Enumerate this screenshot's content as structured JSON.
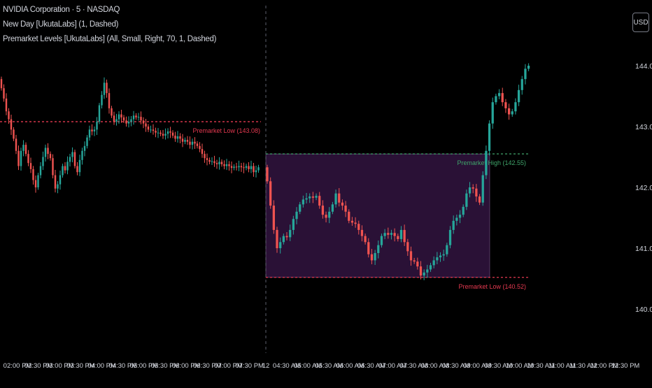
{
  "legend": {
    "symbol": "NVIDIA Corporation · 5 · NASDAQ",
    "indicator1": "New Day [UkutaLabs] (1, Dashed)",
    "indicator2": "Premarket Levels [UkutaLabs] (All, Small, Right, 70, 1, Dashed)"
  },
  "currency_button": "USD",
  "colors": {
    "background": "#000000",
    "up": "#26a69a",
    "down": "#ef5350",
    "premarket_fill": "#2a1136",
    "premarket_border": "#7a5a8a",
    "low_line": "#e53950",
    "high_line": "#3fa46a",
    "axis_text": "#d1d4dc",
    "new_day_line": "#5d606b"
  },
  "chart_data": {
    "type": "candlestick",
    "title": "NVIDIA Corporation · 5 · NASDAQ",
    "ylim": [
      139.5,
      144.9
    ],
    "y_ticks": [
      "144.00",
      "143.00",
      "142.00",
      "141.00",
      "140.00"
    ],
    "x_ticks": [
      "02:00 PM",
      "02:30 PM",
      "03:00 PM",
      "03:30 PM",
      "04:00 PM",
      "04:30 PM",
      "05:00 PM",
      "05:30 PM",
      "06:00 PM",
      "06:30 PM",
      "07:00 PM",
      "07:30 PM",
      "12",
      "04:30 AM",
      "05:00 AM",
      "05:30 AM",
      "06:00 AM",
      "06:30 AM",
      "07:00 AM",
      "07:30 AM",
      "08:00 AM",
      "08:30 AM",
      "09:00 AM",
      "09:30 AM",
      "10:00 AM",
      "10:30 AM",
      "11:00 AM",
      "11:30 AM",
      "12:00 PM",
      "12:30 PM"
    ],
    "new_day_label": "12",
    "levels": [
      {
        "label": "Premarket Low (143.08)",
        "value": 143.08,
        "color": "low"
      },
      {
        "label": "Premarket High (142.55)",
        "value": 142.55,
        "color": "high"
      },
      {
        "label": "Premarket Low (140.52)",
        "value": 140.52,
        "color": "low"
      }
    ],
    "premarket_box": {
      "top": 142.55,
      "bottom": 140.52
    },
    "closes_day1": [
      143.63,
      143.46,
      143.25,
      143.12,
      142.95,
      142.8,
      142.6,
      142.35,
      142.6,
      142.7,
      142.55,
      142.4,
      142.3,
      142.12,
      142.0,
      142.2,
      142.35,
      142.5,
      142.65,
      142.55,
      142.48,
      142.2,
      141.98,
      142.05,
      142.2,
      142.35,
      142.28,
      142.42,
      142.5,
      142.58,
      142.35,
      142.25,
      142.45,
      142.6,
      142.68,
      142.82,
      142.95,
      142.92,
      142.95,
      143.08,
      143.35,
      143.52,
      143.72,
      143.55,
      143.3,
      143.18,
      143.08,
      143.12,
      143.2,
      143.15,
      143.1,
      143.05,
      143.08,
      143.12,
      143.18,
      143.15,
      143.16,
      143.1,
      143.05,
      143.0,
      142.95,
      142.95,
      142.93,
      142.9,
      142.9,
      142.88,
      142.85,
      142.88,
      142.92,
      142.9,
      142.85,
      142.8,
      142.84,
      142.8,
      142.75,
      142.78,
      142.75,
      142.7,
      142.75,
      142.72,
      142.68,
      142.63,
      142.55,
      142.48,
      142.45,
      142.42,
      142.43,
      142.4,
      142.38,
      142.42,
      142.38,
      142.35,
      142.38,
      142.35,
      142.32,
      142.34,
      142.33,
      142.35,
      142.33,
      142.32,
      142.35,
      142.3,
      142.35,
      142.25,
      142.28,
      142.33
    ],
    "closes_day2": [
      142.1,
      141.7,
      141.3,
      141.0,
      141.1,
      141.2,
      141.18,
      141.3,
      141.48,
      141.6,
      141.72,
      141.8,
      141.82,
      141.85,
      141.83,
      141.86,
      141.7,
      141.55,
      141.5,
      141.6,
      141.72,
      141.9,
      141.75,
      141.7,
      141.6,
      141.45,
      141.42,
      141.4,
      141.3,
      141.2,
      141.1,
      140.9,
      140.8,
      140.92,
      141.05,
      141.2,
      141.25,
      141.22,
      141.25,
      141.2,
      141.15,
      141.3,
      141.1,
      140.95,
      140.8,
      140.78,
      140.7,
      140.55,
      140.6,
      140.65,
      140.72,
      140.8,
      140.85,
      140.88,
      140.9,
      141.05,
      141.3,
      141.45,
      141.5,
      141.55,
      141.68,
      141.9,
      142.0,
      141.98,
      141.85,
      141.75,
      142.2,
      142.6,
      143.05,
      143.4,
      143.5,
      143.55,
      143.4,
      143.3,
      143.2,
      143.25,
      143.4,
      143.6,
      143.78,
      143.95,
      144.0
    ]
  }
}
